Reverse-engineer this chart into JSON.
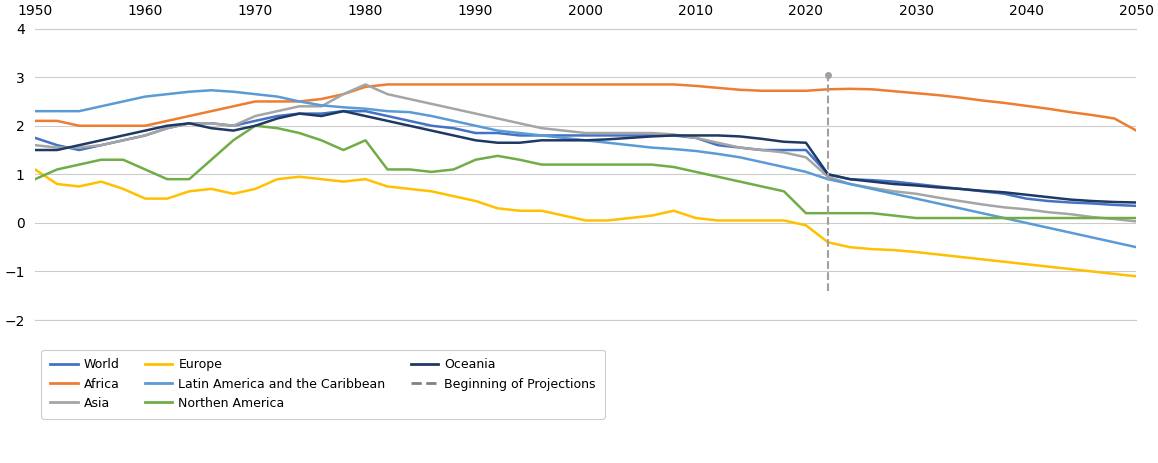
{
  "xlim": [
    1950,
    2050
  ],
  "ylim": [
    -2,
    4
  ],
  "yticks": [
    -2,
    -1,
    0,
    1,
    2,
    3,
    4
  ],
  "xticks": [
    1950,
    1960,
    1970,
    1980,
    1990,
    2000,
    2010,
    2020,
    2030,
    2040,
    2050
  ],
  "projection_year": 2022,
  "colors": {
    "World": "#4472C4",
    "Africa": "#ED7D31",
    "Asia": "#A5A5A5",
    "Europe": "#FFC000",
    "Latin America and the Caribbean": "#5B9BD5",
    "Northen America": "#70AD47",
    "Oceania": "#1F3864"
  },
  "series": {
    "World": {
      "years": [
        1950,
        1952,
        1954,
        1956,
        1958,
        1960,
        1962,
        1964,
        1966,
        1968,
        1970,
        1972,
        1974,
        1976,
        1978,
        1980,
        1982,
        1984,
        1986,
        1988,
        1990,
        1992,
        1994,
        1996,
        1998,
        2000,
        2002,
        2004,
        2006,
        2008,
        2010,
        2012,
        2014,
        2016,
        2018,
        2020,
        2022,
        2024,
        2026,
        2028,
        2030,
        2032,
        2034,
        2036,
        2038,
        2040,
        2042,
        2044,
        2046,
        2048,
        2050
      ],
      "values": [
        1.75,
        1.6,
        1.5,
        1.6,
        1.7,
        1.8,
        1.95,
        2.05,
        2.05,
        2.0,
        2.1,
        2.2,
        2.25,
        2.25,
        2.3,
        2.3,
        2.2,
        2.1,
        2.0,
        1.95,
        1.85,
        1.85,
        1.8,
        1.8,
        1.8,
        1.8,
        1.8,
        1.8,
        1.8,
        1.8,
        1.75,
        1.6,
        1.55,
        1.5,
        1.5,
        1.5,
        1.0,
        0.9,
        0.88,
        0.85,
        0.8,
        0.75,
        0.7,
        0.65,
        0.6,
        0.5,
        0.45,
        0.42,
        0.4,
        0.37,
        0.35
      ]
    },
    "Africa": {
      "years": [
        1950,
        1952,
        1954,
        1956,
        1958,
        1960,
        1962,
        1964,
        1966,
        1968,
        1970,
        1972,
        1974,
        1976,
        1978,
        1980,
        1982,
        1984,
        1986,
        1988,
        1990,
        1992,
        1994,
        1996,
        1998,
        2000,
        2002,
        2004,
        2006,
        2008,
        2010,
        2012,
        2014,
        2016,
        2018,
        2020,
        2022,
        2024,
        2026,
        2028,
        2030,
        2032,
        2034,
        2036,
        2038,
        2040,
        2042,
        2044,
        2046,
        2048,
        2050
      ],
      "values": [
        2.1,
        2.1,
        2.0,
        2.0,
        2.0,
        2.0,
        2.1,
        2.2,
        2.3,
        2.4,
        2.5,
        2.5,
        2.5,
        2.55,
        2.65,
        2.8,
        2.85,
        2.85,
        2.85,
        2.85,
        2.85,
        2.85,
        2.85,
        2.85,
        2.85,
        2.85,
        2.85,
        2.85,
        2.85,
        2.85,
        2.82,
        2.78,
        2.74,
        2.72,
        2.72,
        2.72,
        2.75,
        2.76,
        2.75,
        2.71,
        2.67,
        2.63,
        2.58,
        2.52,
        2.47,
        2.41,
        2.35,
        2.28,
        2.22,
        2.15,
        1.9
      ]
    },
    "Asia": {
      "years": [
        1950,
        1952,
        1954,
        1956,
        1958,
        1960,
        1962,
        1964,
        1966,
        1968,
        1970,
        1972,
        1974,
        1976,
        1978,
        1980,
        1982,
        1984,
        1986,
        1988,
        1990,
        1992,
        1994,
        1996,
        1998,
        2000,
        2002,
        2004,
        2006,
        2008,
        2010,
        2012,
        2014,
        2016,
        2018,
        2020,
        2022,
        2024,
        2026,
        2028,
        2030,
        2032,
        2034,
        2036,
        2038,
        2040,
        2042,
        2044,
        2046,
        2048,
        2050
      ],
      "values": [
        1.6,
        1.55,
        1.55,
        1.6,
        1.7,
        1.8,
        1.95,
        2.05,
        2.05,
        2.0,
        2.2,
        2.3,
        2.4,
        2.4,
        2.65,
        2.85,
        2.65,
        2.55,
        2.45,
        2.35,
        2.25,
        2.15,
        2.05,
        1.95,
        1.9,
        1.85,
        1.85,
        1.85,
        1.85,
        1.82,
        1.75,
        1.65,
        1.55,
        1.5,
        1.45,
        1.35,
        0.95,
        0.8,
        0.72,
        0.65,
        0.6,
        0.52,
        0.45,
        0.38,
        0.32,
        0.28,
        0.22,
        0.18,
        0.12,
        0.08,
        0.03
      ]
    },
    "Europe": {
      "years": [
        1950,
        1952,
        1954,
        1956,
        1958,
        1960,
        1962,
        1964,
        1966,
        1968,
        1970,
        1972,
        1974,
        1976,
        1978,
        1980,
        1982,
        1984,
        1986,
        1988,
        1990,
        1992,
        1994,
        1996,
        1998,
        2000,
        2002,
        2004,
        2006,
        2008,
        2010,
        2012,
        2014,
        2016,
        2018,
        2020,
        2022,
        2024,
        2026,
        2028,
        2030,
        2032,
        2034,
        2036,
        2038,
        2040,
        2042,
        2044,
        2046,
        2048,
        2050
      ],
      "values": [
        1.1,
        0.8,
        0.75,
        0.85,
        0.7,
        0.5,
        0.5,
        0.65,
        0.7,
        0.6,
        0.7,
        0.9,
        0.95,
        0.9,
        0.85,
        0.9,
        0.75,
        0.7,
        0.65,
        0.55,
        0.45,
        0.3,
        0.25,
        0.25,
        0.15,
        0.05,
        0.05,
        0.1,
        0.15,
        0.25,
        0.1,
        0.05,
        0.05,
        0.05,
        0.05,
        -0.05,
        -0.4,
        -0.5,
        -0.54,
        -0.56,
        -0.6,
        -0.65,
        -0.7,
        -0.75,
        -0.8,
        -0.85,
        -0.9,
        -0.95,
        -1.0,
        -1.05,
        -1.1
      ]
    },
    "Latin America and the Caribbean": {
      "years": [
        1950,
        1952,
        1954,
        1956,
        1958,
        1960,
        1962,
        1964,
        1966,
        1968,
        1970,
        1972,
        1974,
        1976,
        1978,
        1980,
        1982,
        1984,
        1986,
        1988,
        1990,
        1992,
        1994,
        1996,
        1998,
        2000,
        2002,
        2004,
        2006,
        2008,
        2010,
        2012,
        2014,
        2016,
        2018,
        2020,
        2022,
        2024,
        2026,
        2028,
        2030,
        2032,
        2034,
        2036,
        2038,
        2040,
        2042,
        2044,
        2046,
        2048,
        2050
      ],
      "values": [
        2.3,
        2.3,
        2.3,
        2.4,
        2.5,
        2.6,
        2.65,
        2.7,
        2.73,
        2.7,
        2.65,
        2.6,
        2.5,
        2.42,
        2.38,
        2.35,
        2.3,
        2.28,
        2.2,
        2.1,
        2.0,
        1.9,
        1.85,
        1.8,
        1.75,
        1.7,
        1.65,
        1.6,
        1.55,
        1.52,
        1.48,
        1.42,
        1.35,
        1.25,
        1.15,
        1.05,
        0.9,
        0.8,
        0.7,
        0.6,
        0.5,
        0.4,
        0.3,
        0.2,
        0.1,
        0.0,
        -0.1,
        -0.2,
        -0.3,
        -0.4,
        -0.5
      ]
    },
    "Northen America": {
      "years": [
        1950,
        1952,
        1954,
        1956,
        1958,
        1960,
        1962,
        1964,
        1966,
        1968,
        1970,
        1972,
        1974,
        1976,
        1978,
        1980,
        1982,
        1984,
        1986,
        1988,
        1990,
        1992,
        1994,
        1996,
        1998,
        2000,
        2002,
        2004,
        2006,
        2008,
        2010,
        2012,
        2014,
        2016,
        2018,
        2020,
        2022,
        2024,
        2026,
        2028,
        2030,
        2032,
        2034,
        2036,
        2038,
        2040,
        2042,
        2044,
        2046,
        2048,
        2050
      ],
      "values": [
        0.9,
        1.1,
        1.2,
        1.3,
        1.3,
        1.1,
        0.9,
        0.9,
        1.3,
        1.7,
        2.0,
        1.95,
        1.85,
        1.7,
        1.5,
        1.7,
        1.1,
        1.1,
        1.05,
        1.1,
        1.3,
        1.38,
        1.3,
        1.2,
        1.2,
        1.2,
        1.2,
        1.2,
        1.2,
        1.15,
        1.05,
        0.95,
        0.85,
        0.75,
        0.65,
        0.2,
        0.2,
        0.2,
        0.2,
        0.15,
        0.1,
        0.1,
        0.1,
        0.1,
        0.1,
        0.1,
        0.1,
        0.1,
        0.1,
        0.1,
        0.1
      ]
    },
    "Oceania": {
      "years": [
        1950,
        1952,
        1954,
        1956,
        1958,
        1960,
        1962,
        1964,
        1966,
        1968,
        1970,
        1972,
        1974,
        1976,
        1978,
        1980,
        1982,
        1984,
        1986,
        1988,
        1990,
        1992,
        1994,
        1996,
        1998,
        2000,
        2002,
        2004,
        2006,
        2008,
        2010,
        2012,
        2014,
        2016,
        2018,
        2020,
        2022,
        2024,
        2026,
        2028,
        2030,
        2032,
        2034,
        2036,
        2038,
        2040,
        2042,
        2044,
        2046,
        2048,
        2050
      ],
      "values": [
        1.5,
        1.5,
        1.6,
        1.7,
        1.8,
        1.9,
        2.0,
        2.05,
        1.95,
        1.9,
        2.0,
        2.15,
        2.25,
        2.2,
        2.3,
        2.2,
        2.1,
        2.0,
        1.9,
        1.8,
        1.7,
        1.65,
        1.65,
        1.7,
        1.7,
        1.7,
        1.72,
        1.75,
        1.78,
        1.8,
        1.8,
        1.8,
        1.78,
        1.73,
        1.67,
        1.65,
        1.0,
        0.9,
        0.85,
        0.8,
        0.77,
        0.73,
        0.7,
        0.66,
        0.63,
        0.58,
        0.53,
        0.48,
        0.45,
        0.43,
        0.42
      ]
    }
  },
  "legend_col1": [
    "World",
    "Europe",
    "Oceania"
  ],
  "legend_col2": [
    "Africa",
    "Latin America and the Caribbean",
    "Beginning of Projections"
  ],
  "legend_col3": [
    "Asia",
    "Northen America"
  ],
  "legend_entries": [
    {
      "label": "World",
      "color": "#4472C4",
      "style": "solid"
    },
    {
      "label": "Africa",
      "color": "#ED7D31",
      "style": "solid"
    },
    {
      "label": "Asia",
      "color": "#A5A5A5",
      "style": "solid"
    },
    {
      "label": "Europe",
      "color": "#FFC000",
      "style": "solid"
    },
    {
      "label": "Latin America and the Caribbean",
      "color": "#5B9BD5",
      "style": "solid"
    },
    {
      "label": "Northen America",
      "color": "#70AD47",
      "style": "solid"
    },
    {
      "label": "Oceania",
      "color": "#1F3864",
      "style": "solid"
    },
    {
      "label": "Beginning of Projections",
      "color": "#808080",
      "style": "dashed"
    }
  ]
}
